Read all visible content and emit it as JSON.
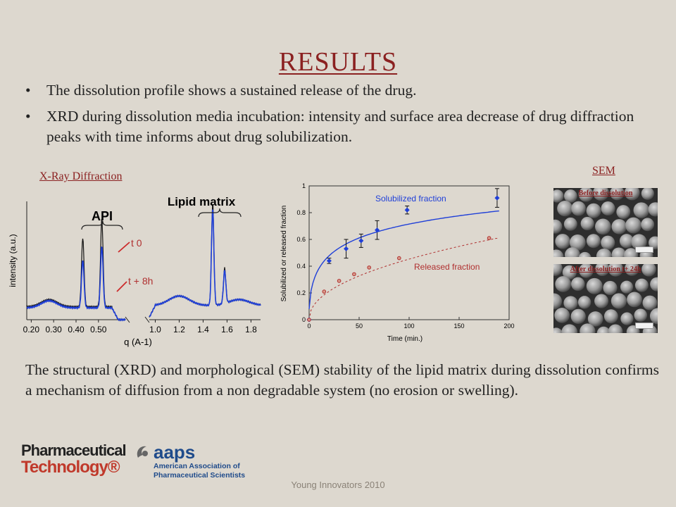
{
  "slide": {
    "title": "RESULTS",
    "bullets": [
      "The dissolution profile shows a sustained release of the drug.",
      "XRD during dissolution media incubation: intensity and surface area decrease of drug diffraction peaks with time informs about drug solubilization."
    ],
    "bullet_glyph": "•",
    "xrd_label": "X-Ray Diffraction",
    "sem_label": "SEM",
    "body": "The structural (XRD) and morphological (SEM) stability of the lipid matrix during dissolution confirms a mechanism of diffusion from a non degradable system (no erosion or swelling).",
    "footer": "Young Innovators 2010",
    "colors": {
      "accent": "#8b2121",
      "background": "#ddd8cf"
    }
  },
  "sem": {
    "before_caption": "Before dissolution",
    "after_caption": "After dissolution t+ 24h"
  },
  "logos": {
    "pt_line1": "Pharmaceutical",
    "pt_line2": "Technology®",
    "aaps_name": "aaps",
    "aaps_line1": "American Association of",
    "aaps_line2": "Pharmaceutical Scientists"
  },
  "chart_data": [
    {
      "type": "line",
      "title": "",
      "xlabel": "q (A-1)",
      "ylabel": "intensity (a.u.)",
      "annotations": [
        "API",
        "Lipid matrix",
        "t 0",
        "t + 8h"
      ],
      "panels": [
        {
          "xlim": [
            0.18,
            0.62
          ],
          "ticks": [
            "0.20",
            "0.30",
            "0.40",
            "0.50"
          ]
        },
        {
          "xlim": [
            0.95,
            1.88
          ],
          "ticks": [
            "1.0",
            "1.2",
            "1.4",
            "1.6",
            "1.8"
          ]
        }
      ],
      "series": [
        {
          "name": "t 0",
          "color": "#111111",
          "peaks": [
            [
              0.43,
              0.58
            ],
            [
              0.515,
              0.74
            ],
            [
              1.48,
              0.87
            ],
            [
              1.58,
              0.3
            ]
          ]
        },
        {
          "name": "t + 8h",
          "color": "#1f3fd8",
          "peaks": [
            [
              0.43,
              0.4
            ],
            [
              0.515,
              0.52
            ],
            [
              1.48,
              0.82
            ],
            [
              1.58,
              0.28
            ]
          ]
        }
      ],
      "ylim": [
        0,
        1
      ]
    },
    {
      "type": "scatter",
      "title": "",
      "xlabel": "Time (min.)",
      "ylabel": "Solubilized or released fraction",
      "xlim": [
        0,
        200
      ],
      "ylim": [
        0,
        1
      ],
      "xticks": [
        "0",
        "50",
        "100",
        "150",
        "200"
      ],
      "yticks": [
        "0",
        "0.2",
        "0.4",
        "0.6",
        "0.8",
        "1"
      ],
      "series": [
        {
          "name": "Solubilized fraction",
          "color": "#1f3fd8",
          "x": [
            0,
            20,
            37,
            52,
            68,
            98,
            188
          ],
          "y": [
            0.0,
            0.44,
            0.53,
            0.59,
            0.67,
            0.82,
            0.91
          ],
          "err": [
            0,
            0.02,
            0.07,
            0.05,
            0.07,
            0.03,
            0.07
          ]
        },
        {
          "name": "Released fraction",
          "color": "#b03030",
          "x": [
            0,
            15,
            30,
            45,
            60,
            90,
            180
          ],
          "y": [
            0.0,
            0.21,
            0.29,
            0.34,
            0.39,
            0.46,
            0.61
          ]
        }
      ]
    }
  ]
}
